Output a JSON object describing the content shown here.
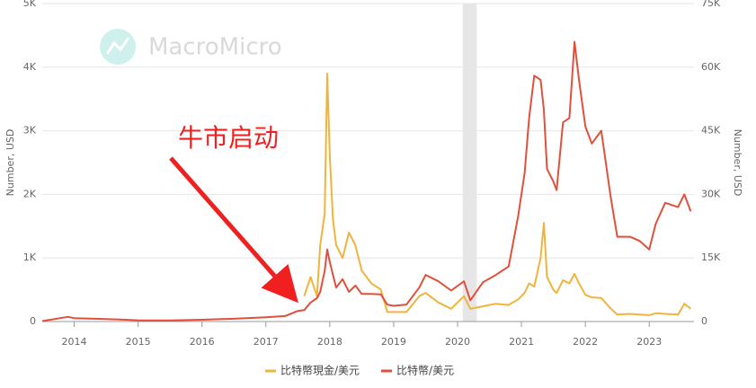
{
  "chart_data": {
    "type": "line",
    "watermark": "MacroMicro",
    "annotation": "牛市启动",
    "ylabel": "Number, USD",
    "y2label": "Number, USD",
    "xlim": [
      2013.5,
      2023.7
    ],
    "xticks": [
      2014,
      2015,
      2016,
      2017,
      2018,
      2019,
      2020,
      2021,
      2022,
      2023
    ],
    "ylim": [
      0,
      5000
    ],
    "yticks": [
      0,
      {
        "value": 1000,
        "label": "1K"
      },
      {
        "value": 2000,
        "label": "2K"
      },
      {
        "value": 3000,
        "label": "3K"
      },
      {
        "value": 4000,
        "label": "4K"
      },
      {
        "value": 5000,
        "label": "5K"
      }
    ],
    "y2lim": [
      0,
      75000
    ],
    "y2ticks": [
      0,
      {
        "value": 15000,
        "label": "15K"
      },
      {
        "value": 30000,
        "label": "30K"
      },
      {
        "value": 45000,
        "label": "45K"
      },
      {
        "value": 60000,
        "label": "60K"
      },
      {
        "value": 75000,
        "label": "75K"
      }
    ],
    "grid": true,
    "shaded_periods": [
      [
        2020.08,
        2020.3
      ]
    ],
    "x": [
      2013.5,
      2013.9,
      2014.0,
      2014.5,
      2015.0,
      2015.5,
      2016.0,
      2016.5,
      2017.0,
      2017.3,
      2017.5,
      2017.6,
      2017.7,
      2017.8,
      2017.85,
      2017.92,
      2017.96,
      2018.0,
      2018.05,
      2018.1,
      2018.2,
      2018.3,
      2018.4,
      2018.5,
      2018.65,
      2018.8,
      2018.9,
      2019.0,
      2019.2,
      2019.4,
      2019.5,
      2019.7,
      2019.9,
      2020.1,
      2020.2,
      2020.4,
      2020.6,
      2020.8,
      2020.95,
      2021.05,
      2021.12,
      2021.2,
      2021.3,
      2021.35,
      2021.4,
      2021.5,
      2021.55,
      2021.65,
      2021.75,
      2021.83,
      2021.9,
      2022.0,
      2022.1,
      2022.25,
      2022.4,
      2022.5,
      2022.7,
      2022.85,
      2023.0,
      2023.1,
      2023.25,
      2023.45,
      2023.55,
      2023.65
    ],
    "series": [
      {
        "name": "比特幣現金/美元",
        "color": "#f0b43c",
        "axis": "y",
        "values": [
          null,
          null,
          null,
          null,
          null,
          null,
          null,
          null,
          null,
          null,
          null,
          400,
          700,
          400,
          1200,
          1700,
          3900,
          2600,
          1600,
          1200,
          1000,
          1400,
          1200,
          800,
          600,
          500,
          150,
          150,
          150,
          400,
          450,
          300,
          200,
          400,
          200,
          240,
          280,
          260,
          350,
          450,
          600,
          550,
          1000,
          1550,
          700,
          500,
          450,
          650,
          600,
          750,
          600,
          420,
          380,
          370,
          200,
          110,
          120,
          110,
          100,
          130,
          120,
          110,
          280,
          200
        ]
      },
      {
        "name": "比特幣/美元",
        "color": "#e0503c",
        "axis": "y2",
        "values": [
          100,
          1100,
          800,
          600,
          300,
          250,
          430,
          650,
          1000,
          1300,
          2500,
          2700,
          4500,
          5500,
          7000,
          12000,
          17000,
          14000,
          11000,
          8000,
          10000,
          7000,
          8500,
          6500,
          6500,
          6400,
          4000,
          3700,
          4000,
          8000,
          11000,
          9500,
          7300,
          9500,
          5000,
          9300,
          11000,
          13000,
          25000,
          35000,
          48000,
          58000,
          57000,
          50000,
          36000,
          33000,
          31000,
          47000,
          48000,
          66000,
          57000,
          46000,
          42000,
          45000,
          29000,
          20000,
          20000,
          19000,
          17000,
          23000,
          28000,
          27000,
          30000,
          26000
        ]
      }
    ]
  }
}
